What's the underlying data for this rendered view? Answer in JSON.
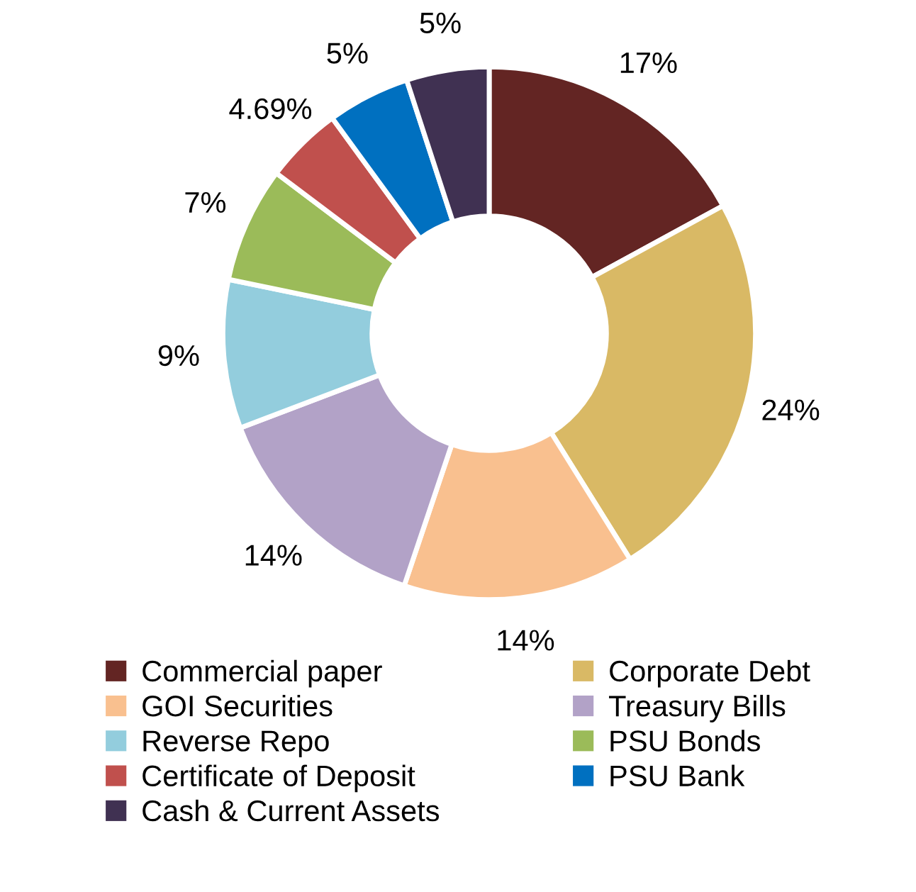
{
  "chart_data": {
    "type": "donut",
    "categories": [
      "Commercial paper",
      "Corporate Debt",
      "GOI Securities",
      "Treasury Bills",
      "Reverse Repo",
      "PSU Bonds",
      "Certificate of Deposit",
      "PSU Bank",
      "Cash & Current Assets"
    ],
    "values": [
      17,
      24,
      14,
      14,
      9,
      7,
      4.69,
      5,
      5
    ],
    "value_labels": [
      "17%",
      "24%",
      "14%",
      "14%",
      "9%",
      "7%",
      "4.69%",
      "5%",
      "5%"
    ],
    "colors": [
      "#632523",
      "#d9b965",
      "#f9c08f",
      "#b2a2c7",
      "#93cddd",
      "#9bbb59",
      "#c0504d",
      "#0070c0",
      "#403152"
    ],
    "legend": "bottom"
  }
}
